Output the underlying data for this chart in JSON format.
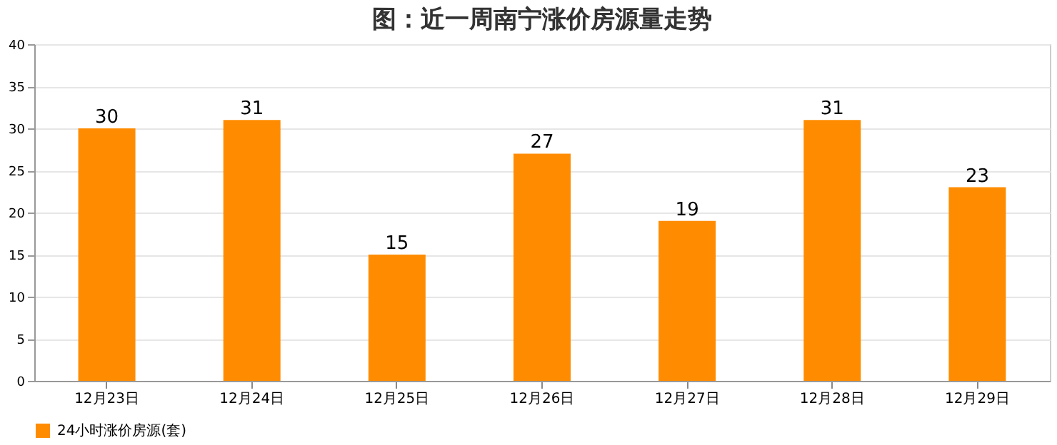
{
  "chart_data": {
    "type": "bar",
    "title": "图：近一周南宁涨价房源量走势",
    "categories": [
      "12月23日",
      "12月24日",
      "12月25日",
      "12月26日",
      "12月27日",
      "12月28日",
      "12月29日"
    ],
    "series": [
      {
        "name": "24小时涨价房源(套)",
        "color": "#ff8c00",
        "values": [
          30,
          31,
          15,
          27,
          19,
          31,
          23
        ]
      }
    ],
    "ylim": [
      0,
      40
    ],
    "yticks": [
      0,
      5,
      10,
      15,
      20,
      25,
      30,
      35,
      40
    ],
    "grid": "y",
    "legend": "bottom",
    "data_labels": true
  }
}
